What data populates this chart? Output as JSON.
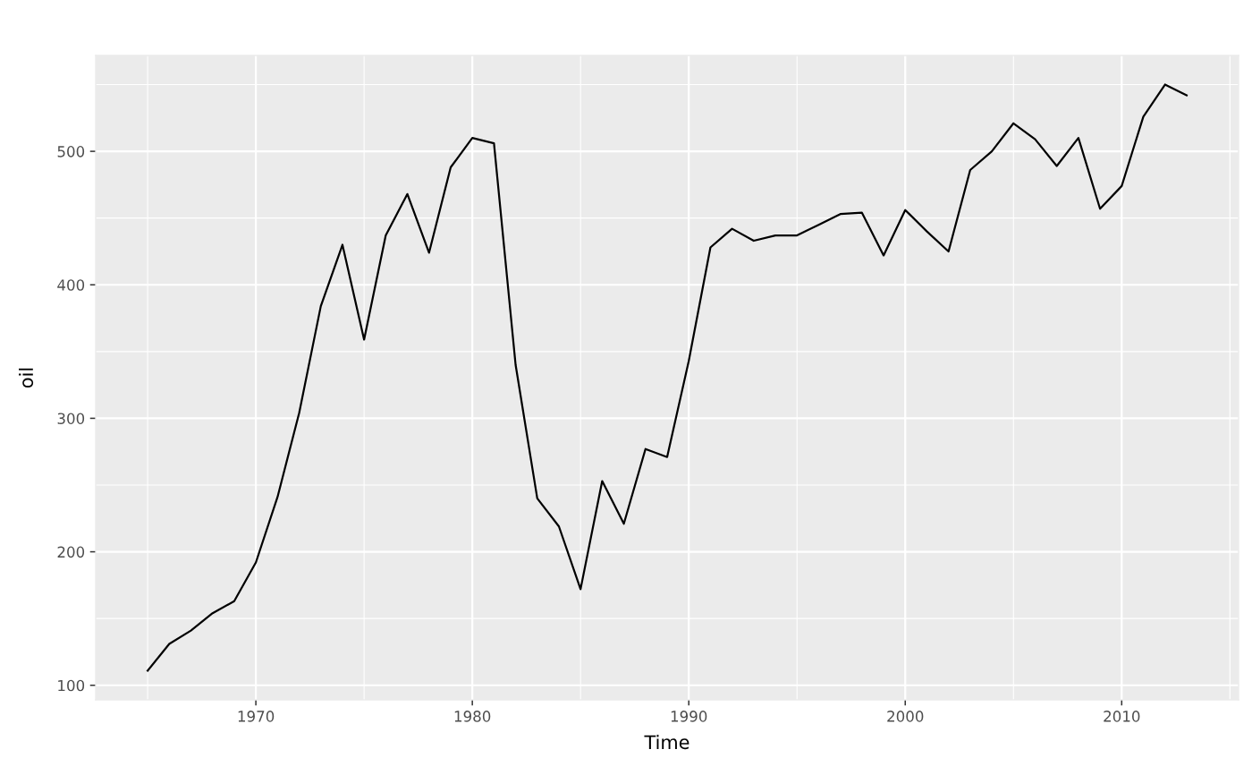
{
  "chart_data": {
    "type": "line",
    "xlabel": "Time",
    "ylabel": "oil",
    "x": [
      1965,
      1966,
      1967,
      1968,
      1969,
      1970,
      1971,
      1972,
      1973,
      1974,
      1975,
      1976,
      1977,
      1978,
      1979,
      1980,
      1981,
      1982,
      1983,
      1984,
      1985,
      1986,
      1987,
      1988,
      1989,
      1990,
      1991,
      1992,
      1993,
      1994,
      1995,
      1996,
      1997,
      1998,
      1999,
      2000,
      2001,
      2002,
      2003,
      2004,
      2005,
      2006,
      2007,
      2008,
      2009,
      2010,
      2011,
      2012,
      2013
    ],
    "series": [
      {
        "color": "#000000",
        "values": [
          111,
          131,
          141,
          154,
          163,
          192,
          241,
          304,
          384,
          430,
          359,
          437,
          468,
          424,
          488,
          510,
          506,
          340,
          240,
          219,
          172,
          253,
          221,
          277,
          271,
          343,
          428,
          442,
          433,
          437,
          437,
          445,
          453,
          454,
          422,
          456,
          440,
          425,
          486,
          500,
          521,
          509,
          489,
          510,
          457,
          474,
          526,
          550,
          542
        ]
      }
    ],
    "xlim": [
      1962.6,
      2015.4
    ],
    "ylim": [
      89.1,
      571.8
    ],
    "xticks": [
      1970,
      1980,
      1990,
      2000,
      2010
    ],
    "yticks": [
      100,
      200,
      300,
      400,
      500
    ],
    "grid": true,
    "marker": "none",
    "line_style": "solid"
  }
}
